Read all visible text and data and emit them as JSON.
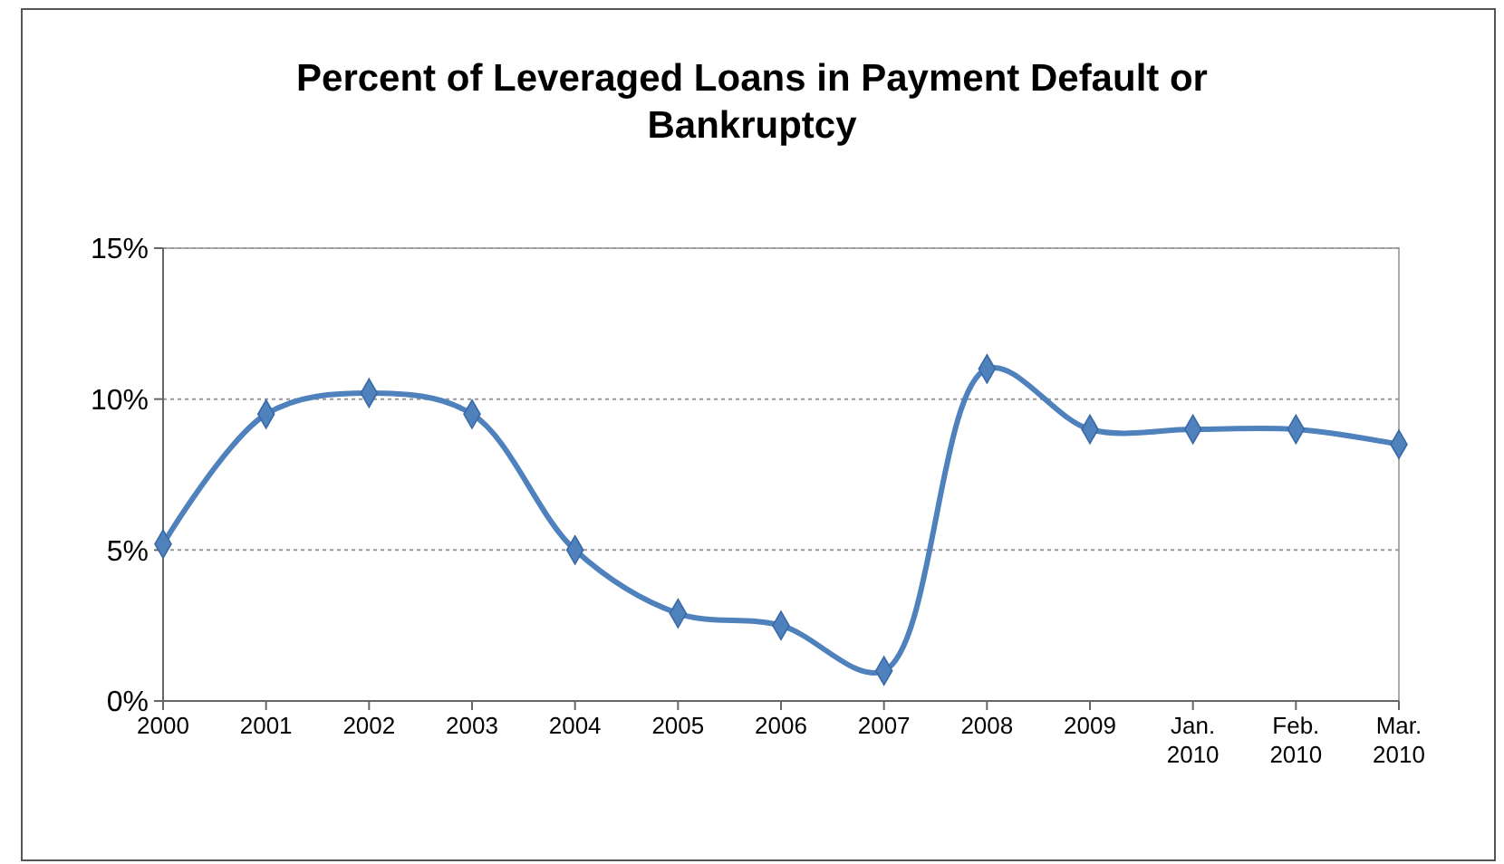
{
  "chart_data": {
    "type": "line",
    "title": "Percent of Leveraged Loans in Payment Default or Bankruptcy",
    "categories": [
      "2000",
      "2001",
      "2002",
      "2003",
      "2004",
      "2005",
      "2006",
      "2007",
      "2008",
      "2009",
      "Jan. 2010",
      "Feb. 2010",
      "Mar. 2010"
    ],
    "series": [
      {
        "color": "#4f81bd",
        "values": [
          5.2,
          9.5,
          10.2,
          9.5,
          5.0,
          2.9,
          2.5,
          1.0,
          11.0,
          9.0,
          9.0,
          9.0,
          8.5
        ]
      }
    ],
    "ylim": [
      0,
      15
    ],
    "yticks": [
      {
        "value": 0,
        "label": "0%"
      },
      {
        "value": 5,
        "label": "5%"
      },
      {
        "value": 10,
        "label": "10%"
      },
      {
        "value": 15,
        "label": "15%"
      }
    ],
    "grid": "y",
    "marker": "diamond",
    "line_style": "solid"
  }
}
